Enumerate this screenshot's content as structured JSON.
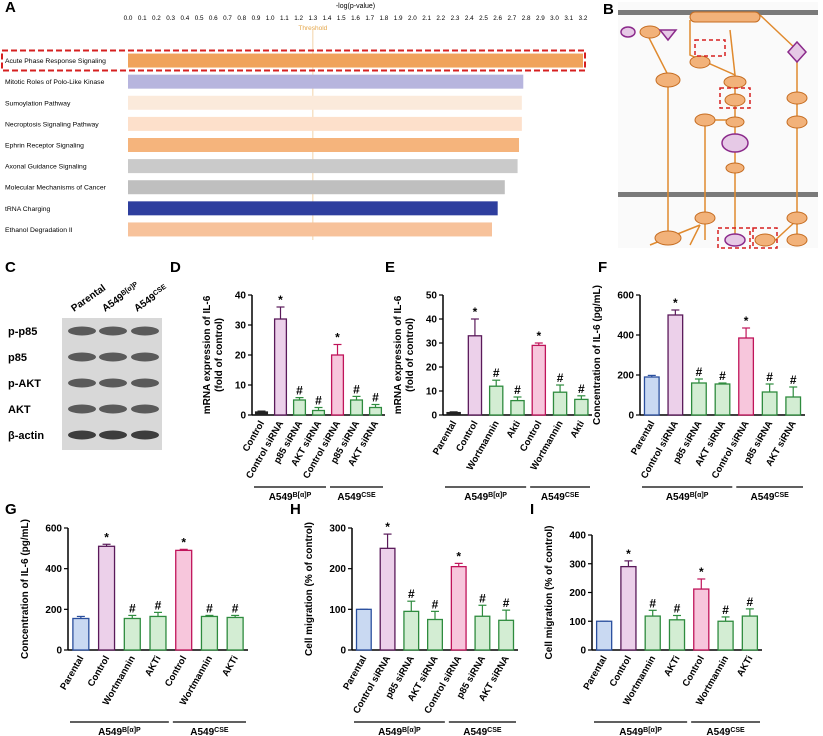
{
  "chart_data": [
    {
      "type": "hbar",
      "panel": "A",
      "xlabel": "-log(p-value)",
      "categories": [
        "Acute Phase  Response Signaling",
        "Mitotic Roles of  Polo-Like Kinase",
        "Sumoylation Pathway",
        "Necroptosis Signaling Pathway",
        "Ephrin Receptor Signaling",
        "Axonal Guidance Signaling",
        "Molecular Mechanisms of Cancer",
        "tRNA Charging",
        "Ethanol Degradation II"
      ],
      "values": [
        3.2,
        2.78,
        2.77,
        2.77,
        2.75,
        2.74,
        2.65,
        2.6,
        2.56
      ],
      "colors": [
        "#f0a35c",
        "#b7b5de",
        "#fbeadb",
        "#fde0cb",
        "#f5b47c",
        "#cacaca",
        "#bfbfbf",
        "#2e3e9e",
        "#f7c29b"
      ],
      "threshold": 1.3,
      "threshold_label": "Threshold",
      "xlim": [
        0,
        3.2
      ],
      "xticks": [
        {
          "value": 0,
          "label": "0.0"
        },
        0.1,
        0.2,
        0.3,
        0.4,
        0.5,
        0.6,
        0.7,
        0.8,
        0.9,
        {
          "value": 1,
          "label": "1.0"
        },
        1.1,
        1.2,
        1.3,
        1.4,
        1.5,
        1.6,
        1.7,
        1.8,
        1.9,
        {
          "value": 2,
          "label": "2.0"
        },
        2.1,
        2.2,
        2.3,
        2.4,
        2.5,
        2.6,
        2.7,
        2.8,
        2.9,
        {
          "value": 3,
          "label": "3.0"
        },
        3.1,
        3.2
      ]
    },
    {
      "type": "bar",
      "panel": "D",
      "ylabel": [
        "mRNA expression of IL-6",
        "(fold of control)"
      ],
      "categories": [
        "Control",
        "Control siRNA",
        "p85 siRNA",
        "AKT siRNA",
        "Control siRNA",
        "p85 siRNA",
        "AKT siRNA"
      ],
      "values": [
        1,
        32,
        5,
        1.5,
        20,
        5,
        2.5
      ],
      "errors": [
        0.3,
        4,
        0.8,
        1,
        3.5,
        1.2,
        1
      ],
      "annotations": [
        null,
        "*",
        "#",
        "#",
        "*",
        "#",
        "#"
      ],
      "colors": [
        "#222222",
        "#ecd0ea",
        "#d3edd3",
        "#d3edd3",
        "#f7c6dc",
        "#d3edd3",
        "#d3edd3"
      ],
      "edge_colors": [
        "#222222",
        "#5a1a5a",
        "#2e8b3e",
        "#2e8b3e",
        "#c0145a",
        "#2e8b3e",
        "#2e8b3e"
      ],
      "groups": [
        {
          "label": "A549",
          "sup": "B[α]P"
        },
        {
          "label": "A549",
          "sup": "CSE"
        }
      ],
      "ylim": [
        0,
        40
      ],
      "yticks": [
        0,
        10,
        20,
        30,
        40
      ]
    },
    {
      "type": "bar",
      "panel": "E",
      "ylabel": [
        "mRNA expression of IL-6",
        "(fold of control)"
      ],
      "categories": [
        "Parental",
        "Control",
        "Wortmannin",
        "Akti",
        "Control",
        "Wortmannin",
        "Akti"
      ],
      "values": [
        1,
        33,
        12,
        6,
        29,
        9.5,
        6.5
      ],
      "errors": [
        0.3,
        7,
        2.5,
        1.5,
        1,
        3,
        1.5
      ],
      "annotations": [
        null,
        "*",
        "#",
        "#",
        "*",
        "#",
        "#"
      ],
      "colors": [
        "#222222",
        "#ecd0ea",
        "#d3edd3",
        "#d3edd3",
        "#f7c6dc",
        "#d3edd3",
        "#d3edd3"
      ],
      "edge_colors": [
        "#222222",
        "#5a1a5a",
        "#2e8b3e",
        "#2e8b3e",
        "#c0145a",
        "#2e8b3e",
        "#2e8b3e"
      ],
      "groups": [
        {
          "label": "A549",
          "sup": "B[α]P"
        },
        {
          "label": "A549",
          "sup": "CSE"
        }
      ],
      "ylim": [
        0,
        50
      ],
      "yticks": [
        0,
        10,
        20,
        30,
        40,
        50
      ]
    },
    {
      "type": "bar",
      "panel": "F",
      "ylabel": [
        "Concentration of IL-6 (pg/mL)"
      ],
      "categories": [
        "Parental",
        "Control siRNA",
        "p85 siRNA",
        "AKT siRNA",
        "Control siRNA",
        "p85 siRNA",
        "AKT siRNA"
      ],
      "values": [
        190,
        500,
        160,
        155,
        385,
        115,
        90
      ],
      "errors": [
        8,
        25,
        20,
        5,
        50,
        40,
        50
      ],
      "annotations": [
        null,
        "*",
        "#",
        "#",
        "*",
        "#",
        "#"
      ],
      "colors": [
        "#c9d9f2",
        "#ecd0ea",
        "#d3edd3",
        "#d3edd3",
        "#f7c6dc",
        "#d3edd3",
        "#d3edd3"
      ],
      "edge_colors": [
        "#2a4f9e",
        "#5a1a5a",
        "#2e8b3e",
        "#2e8b3e",
        "#c0145a",
        "#2e8b3e",
        "#2e8b3e"
      ],
      "groups": [
        {
          "label": "A549",
          "sup": "B[α]P"
        },
        {
          "label": "A549",
          "sup": "CSE"
        }
      ],
      "ylim": [
        0,
        600
      ],
      "yticks": [
        0,
        200,
        400,
        600
      ]
    },
    {
      "type": "bar",
      "panel": "G",
      "ylabel": [
        "Concentration of IL-6 (pg/mL)"
      ],
      "categories": [
        "Parental",
        "Control",
        "Wortmannin",
        "AKTi",
        "Control",
        "Wortmannin",
        "AKTi"
      ],
      "values": [
        155,
        510,
        155,
        165,
        490,
        165,
        160
      ],
      "errors": [
        10,
        10,
        15,
        20,
        5,
        5,
        10
      ],
      "annotations": [
        null,
        "*",
        "#",
        "#",
        "*",
        "#",
        "#"
      ],
      "colors": [
        "#c9d9f2",
        "#ecd0ea",
        "#d3edd3",
        "#d3edd3",
        "#f7c6dc",
        "#d3edd3",
        "#d3edd3"
      ],
      "edge_colors": [
        "#2a4f9e",
        "#5a1a5a",
        "#2e8b3e",
        "#2e8b3e",
        "#c0145a",
        "#2e8b3e",
        "#2e8b3e"
      ],
      "groups": [
        {
          "label": "A549",
          "sup": "B[α]P"
        },
        {
          "label": "A549",
          "sup": "CSE"
        }
      ],
      "ylim": [
        0,
        600
      ],
      "yticks": [
        0,
        200,
        400,
        600
      ]
    },
    {
      "type": "bar",
      "panel": "H",
      "ylabel": [
        "Cell migration (% of control)"
      ],
      "categories": [
        "Parental",
        "Control siRNA",
        "p85 siRNA",
        "AKT siRNA",
        "Control siRNA",
        "p85 siRNA",
        "AKT siRNA"
      ],
      "values": [
        100,
        250,
        95,
        75,
        205,
        83,
        73
      ],
      "errors": [
        0,
        35,
        25,
        20,
        8,
        27,
        25
      ],
      "annotations": [
        null,
        "*",
        "#",
        "#",
        "*",
        "#",
        "#"
      ],
      "colors": [
        "#c9d9f2",
        "#ecd0ea",
        "#d3edd3",
        "#d3edd3",
        "#f7c6dc",
        "#d3edd3",
        "#d3edd3"
      ],
      "edge_colors": [
        "#2a4f9e",
        "#5a1a5a",
        "#2e8b3e",
        "#2e8b3e",
        "#c0145a",
        "#2e8b3e",
        "#2e8b3e"
      ],
      "groups": [
        {
          "label": "A549",
          "sup": "B[α]P"
        },
        {
          "label": "A549",
          "sup": "CSE"
        }
      ],
      "ylim": [
        0,
        300
      ],
      "yticks": [
        0,
        100,
        200,
        300
      ]
    },
    {
      "type": "bar",
      "panel": "I",
      "ylabel": [
        "Cell migration (% of control)"
      ],
      "categories": [
        "Parental",
        "Control",
        "Wortmannin",
        "AKTi",
        "Control",
        "Wortmannin",
        "AKTi"
      ],
      "values": [
        100,
        290,
        118,
        105,
        212,
        100,
        118
      ],
      "errors": [
        0,
        20,
        20,
        15,
        35,
        15,
        25
      ],
      "annotations": [
        null,
        "*",
        "#",
        "#",
        "*",
        "#",
        "#"
      ],
      "colors": [
        "#c9d9f2",
        "#ecd0ea",
        "#d3edd3",
        "#d3edd3",
        "#f7c6dc",
        "#d3edd3",
        "#d3edd3"
      ],
      "edge_colors": [
        "#2a4f9e",
        "#5a1a5a",
        "#2e8b3e",
        "#2e8b3e",
        "#c0145a",
        "#2e8b3e",
        "#2e8b3e"
      ],
      "groups": [
        {
          "label": "A549",
          "sup": "B[α]P"
        },
        {
          "label": "A549",
          "sup": "CSE"
        }
      ],
      "ylim": [
        0,
        400
      ],
      "yticks": [
        0,
        100,
        200,
        300,
        400
      ]
    }
  ],
  "pathway_panel": {
    "panel": "B"
  },
  "blot_panel": {
    "panel": "C",
    "lanes": [
      {
        "label": "Parental"
      },
      {
        "label": "A549",
        "sup": "B[α]P"
      },
      {
        "label": "A549",
        "sup": "CSE"
      }
    ],
    "rows": [
      "p-p85",
      "p85",
      "p-AKT",
      "AKT",
      "β-actin"
    ]
  }
}
